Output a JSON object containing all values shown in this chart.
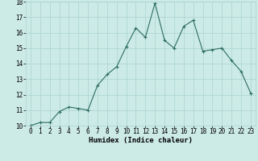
{
  "x": [
    0,
    1,
    2,
    3,
    4,
    5,
    6,
    7,
    8,
    9,
    10,
    11,
    12,
    13,
    14,
    15,
    16,
    17,
    18,
    19,
    20,
    21,
    22,
    23
  ],
  "y": [
    10.0,
    10.2,
    10.2,
    10.9,
    11.2,
    11.1,
    11.0,
    12.6,
    13.3,
    13.8,
    15.1,
    16.3,
    15.7,
    17.9,
    15.5,
    15.0,
    16.4,
    16.8,
    14.8,
    14.9,
    15.0,
    14.2,
    13.5,
    12.1
  ],
  "line_color": "#2d6e62",
  "marker": "+",
  "bg_color": "#cceae6",
  "grid_color": "#aad4ce",
  "xlabel": "Humidex (Indice chaleur)",
  "ylim": [
    10,
    18
  ],
  "xlim_min": -0.5,
  "xlim_max": 23.5,
  "yticks": [
    10,
    11,
    12,
    13,
    14,
    15,
    16,
    17,
    18
  ],
  "xticks": [
    0,
    1,
    2,
    3,
    4,
    5,
    6,
    7,
    8,
    9,
    10,
    11,
    12,
    13,
    14,
    15,
    16,
    17,
    18,
    19,
    20,
    21,
    22,
    23
  ],
  "tick_fontsize": 5.5,
  "xlabel_fontsize": 6.5
}
